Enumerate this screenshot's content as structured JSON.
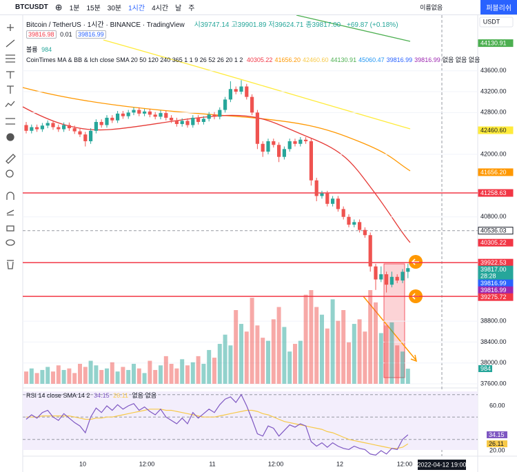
{
  "toolbar": {
    "symbol": "BTCUSDT",
    "intervals": [
      "1분",
      "15분",
      "30분",
      "1시간",
      "4시간",
      "날",
      "주"
    ],
    "layout_name": "이름없음",
    "publish": "퍼블리쉬"
  },
  "legend": {
    "title": "Bitcoin / TetherUS · 1시간 · BINANCE · TradingView",
    "ohlc": [
      "시39747.14",
      "고39901.89",
      "저39624.71",
      "종39817.00"
    ],
    "change": "+69.87 (+0.18%)",
    "bid": "39816.98",
    "spread": "0.01",
    "ask": "39816.99",
    "volume_label": "볼륨",
    "volume_value": "984",
    "indicator": "CoinTimes MA & BB & Ich close SMA 20 50 120 240 365 1 1 9 26 52 26 20 1 2",
    "indicator_values": [
      {
        "text": "40305.22",
        "color": "#f23645"
      },
      {
        "text": "41656.20",
        "color": "#ff9800"
      },
      {
        "text": "42460.60",
        "color": "#f7c948"
      },
      {
        "text": "44130.91",
        "color": "#4caf50"
      },
      {
        "text": "45060.47",
        "color": "#2196f3"
      },
      {
        "text": "39816.99",
        "color": "#2962ff"
      },
      {
        "text": "39816.99",
        "color": "#9c27b0"
      }
    ],
    "indicator_none": "없음 없음 없음"
  },
  "currency": "USDT",
  "price_axis": {
    "ylim": [
      37600,
      44667
    ],
    "ticks": [
      {
        "value": 43600,
        "label": "43600.00"
      },
      {
        "value": 43200,
        "label": "43200.00"
      },
      {
        "value": 42800,
        "label": "42800.00"
      },
      {
        "value": 42000,
        "label": "42000.00"
      },
      {
        "value": 40800,
        "label": "40800.00"
      },
      {
        "value": 38800,
        "label": "38800.00"
      },
      {
        "value": 38400,
        "label": "38400.00"
      },
      {
        "value": 38000,
        "label": "38000.00"
      },
      {
        "value": 37600,
        "label": "37600.00"
      }
    ]
  },
  "candles": [
    [
      42560,
      42620,
      42400,
      42450
    ],
    [
      42450,
      42570,
      42400,
      42520
    ],
    [
      42520,
      42570,
      42430,
      42480
    ],
    [
      42480,
      42600,
      42430,
      42550
    ],
    [
      42550,
      42650,
      42500,
      42600
    ],
    [
      42600,
      42650,
      42470,
      42520
    ],
    [
      42520,
      42570,
      42430,
      42480
    ],
    [
      42480,
      42610,
      42430,
      42560
    ],
    [
      42560,
      42610,
      42450,
      42500
    ],
    [
      42500,
      42550,
      42390,
      42440
    ],
    [
      42440,
      42490,
      42330,
      42380
    ],
    [
      42380,
      42430,
      42150,
      42250
    ],
    [
      42250,
      42500,
      42200,
      42450
    ],
    [
      42450,
      42670,
      42400,
      42620
    ],
    [
      42620,
      42670,
      42510,
      42560
    ],
    [
      42560,
      42750,
      42510,
      42700
    ],
    [
      42700,
      42750,
      42600,
      42650
    ],
    [
      42650,
      42830,
      42600,
      42780
    ],
    [
      42780,
      42830,
      42680,
      42730
    ],
    [
      42730,
      42850,
      42680,
      42800
    ],
    [
      42800,
      42900,
      42750,
      42850
    ],
    [
      42850,
      42900,
      42730,
      42780
    ],
    [
      42780,
      42870,
      42730,
      42820
    ],
    [
      42820,
      42870,
      42710,
      42760
    ],
    [
      42760,
      42810,
      42670,
      42720
    ],
    [
      42720,
      42840,
      42670,
      42790
    ],
    [
      42790,
      42840,
      42650,
      42700
    ],
    [
      42700,
      42750,
      42600,
      42650
    ],
    [
      42650,
      42700,
      42530,
      42580
    ],
    [
      42580,
      42690,
      42530,
      42640
    ],
    [
      42640,
      42690,
      42510,
      42560
    ],
    [
      42560,
      42750,
      42510,
      42700
    ],
    [
      42700,
      42750,
      42570,
      42620
    ],
    [
      42620,
      42730,
      42570,
      42680
    ],
    [
      42680,
      42810,
      42630,
      42760
    ],
    [
      42760,
      42810,
      42670,
      42720
    ],
    [
      42720,
      42900,
      42670,
      42850
    ],
    [
      42850,
      43100,
      42800,
      43050
    ],
    [
      43050,
      43400,
      43000,
      43250
    ],
    [
      43250,
      43300,
      43150,
      43200
    ],
    [
      43200,
      43420,
      43150,
      43300
    ],
    [
      43300,
      43350,
      43050,
      43100
    ],
    [
      43100,
      43150,
      42750,
      42800
    ],
    [
      42800,
      42850,
      42100,
      42200
    ],
    [
      42200,
      42250,
      41950,
      42050
    ],
    [
      42050,
      42300,
      42000,
      42250
    ],
    [
      42250,
      42300,
      42130,
      42180
    ],
    [
      42180,
      42230,
      41850,
      41950
    ],
    [
      41950,
      42150,
      41900,
      42100
    ],
    [
      42100,
      42300,
      42050,
      42250
    ],
    [
      42250,
      42300,
      42150,
      42200
    ],
    [
      42200,
      42330,
      42150,
      42280
    ],
    [
      42280,
      42330,
      42200,
      42250
    ],
    [
      42250,
      42300,
      41400,
      41500
    ],
    [
      41500,
      41550,
      41100,
      41200
    ],
    [
      41200,
      41300,
      41150,
      41250
    ],
    [
      41250,
      41300,
      41000,
      41050
    ],
    [
      41050,
      41200,
      41000,
      41150
    ],
    [
      41150,
      41200,
      40900,
      40950
    ],
    [
      40950,
      41000,
      40750,
      40800
    ],
    [
      40800,
      40850,
      40600,
      40650
    ],
    [
      40650,
      40750,
      40600,
      40700
    ],
    [
      40700,
      40750,
      40500,
      40550
    ],
    [
      40550,
      40600,
      40400,
      40450
    ],
    [
      40450,
      40500,
      39750,
      39850
    ],
    [
      39850,
      39900,
      39400,
      39600
    ],
    [
      39600,
      39850,
      39550,
      39700
    ],
    [
      39700,
      39750,
      39350,
      39500
    ],
    [
      39500,
      39750,
      39450,
      39650
    ],
    [
      39650,
      39700,
      39530,
      39580
    ],
    [
      39580,
      39800,
      39530,
      39747.14
    ],
    [
      39747.14,
      39901.89,
      39624.71,
      39817
    ]
  ],
  "volume_ylim": [
    0,
    24000
  ],
  "volumes": [
    800,
    1000,
    700,
    900,
    1100,
    800,
    1200,
    900,
    1000,
    700,
    1300,
    1100,
    1500,
    1200,
    900,
    1000,
    1400,
    800,
    1100,
    900,
    1300,
    1000,
    700,
    1500,
    900,
    1200,
    1800,
    1300,
    1000,
    1600,
    1200,
    1400,
    1800,
    1300,
    2200,
    1700,
    2600,
    3200,
    2500,
    4800,
    3900,
    3400,
    5600,
    3800,
    3000,
    2800,
    4200,
    5000,
    3700,
    2100,
    2600,
    2800,
    5800,
    6100,
    5000,
    4500,
    3600,
    5500,
    4100,
    4800,
    2700,
    3900,
    4200,
    3400,
    6100,
    5300,
    3300,
    3800,
    4000,
    2500,
    2100,
    984
  ],
  "levels": [
    {
      "value": 41258.63,
      "color": "#f23645",
      "style": "solid"
    },
    {
      "value": 39922.53,
      "color": "#f23645",
      "style": "solid"
    },
    {
      "value": 39275.72,
      "color": "#f23645",
      "style": "solid"
    },
    {
      "value": 40536.03,
      "color": "#9598a1",
      "style": "dashed"
    }
  ],
  "price_badges": [
    {
      "label": "44130.91",
      "value": 44130.91,
      "color": "#4caf50",
      "text_color": "#ffffff"
    },
    {
      "label": "42460.60",
      "value": 42460.6,
      "color": "#ffeb3b",
      "text_color": "#131722"
    },
    {
      "label": "41656.20",
      "value": 41656.2,
      "color": "#ff9800",
      "text_color": "#ffffff"
    },
    {
      "label": "41258.63",
      "value": 41258.63,
      "color": "#f23645",
      "text_color": "#ffffff"
    },
    {
      "label": "40536.03",
      "value": 40536.03,
      "color": "#ffffff",
      "text_color": "#131722"
    },
    {
      "label": "40305.22",
      "value": 40305.22,
      "color": "#f23645",
      "text_color": "#ffffff"
    },
    {
      "label": "39922.53",
      "value": 39922.53,
      "color": "#f23645",
      "text_color": "#ffffff"
    },
    {
      "label": "39817.00",
      "sublabel": "28:28",
      "value": 39817,
      "color": "#26a69a",
      "text_color": "#ffffff"
    },
    {
      "label": "39816.99",
      "value": 39816.99,
      "color": "#2962ff",
      "text_color": "#ffffff"
    },
    {
      "label": "39816.99",
      "value": 39816.99,
      "color": "#9c27b0",
      "text_color": "#ffffff"
    },
    {
      "label": "39275.72",
      "value": 39275.72,
      "color": "#f23645",
      "text_color": "#ffffff"
    }
  ],
  "volume_badge": {
    "label": "984",
    "color": "#26a69a"
  },
  "rsi": {
    "label": "RSI 14 close SMA 14 2",
    "value_text": "34.15",
    "sma_text": "26.11",
    "none": "없음 없음",
    "ylim": [
      16.3,
      72.9
    ],
    "ticks": [
      {
        "value": 60,
        "label": "60.00"
      },
      {
        "value": 20,
        "label": "20.00"
      }
    ],
    "bands": [
      70,
      50,
      30
    ],
    "values": [
      48,
      52,
      49,
      54,
      56,
      50,
      47,
      53,
      49,
      45,
      42,
      36,
      50,
      58,
      54,
      60,
      56,
      61,
      57,
      60,
      62,
      56,
      59,
      55,
      52,
      57,
      50,
      47,
      44,
      49,
      44,
      54,
      49,
      53,
      57,
      54,
      61,
      66,
      68,
      63,
      70,
      60,
      48,
      35,
      33,
      42,
      40,
      33,
      38,
      43,
      41,
      44,
      42,
      28,
      24,
      27,
      23,
      27,
      24,
      22,
      21,
      24,
      22,
      21,
      17,
      16,
      20,
      17,
      22,
      21,
      30,
      34.15
    ],
    "sma": [
      50,
      50,
      50,
      51,
      51,
      51,
      51,
      51,
      51,
      50,
      49,
      48,
      48,
      49,
      49,
      50,
      50,
      51,
      52,
      53,
      54,
      55,
      56,
      57,
      57,
      57,
      56,
      56,
      55,
      54,
      53,
      52,
      51,
      50,
      50,
      50,
      51,
      52,
      53,
      54,
      55,
      56,
      56,
      55,
      53,
      52,
      50,
      48,
      46,
      45,
      44,
      43,
      42,
      41,
      40,
      39,
      37,
      36,
      34,
      32,
      30,
      29,
      28,
      27,
      26,
      25,
      24,
      23,
      22,
      22,
      23,
      26.11
    ],
    "color": "#7e57c2",
    "sma_color": "#f7c948",
    "badges": [
      {
        "label": "34.15",
        "value": 34.15,
        "color": "#7e57c2"
      },
      {
        "label": "26.11",
        "value": 26.11,
        "color": "#f7c948"
      }
    ]
  },
  "time_labels": [
    "10",
    "12:00",
    "11",
    "12:00",
    "12",
    "12:00"
  ],
  "crosshair_time": "2022-04-12 19:00"
}
